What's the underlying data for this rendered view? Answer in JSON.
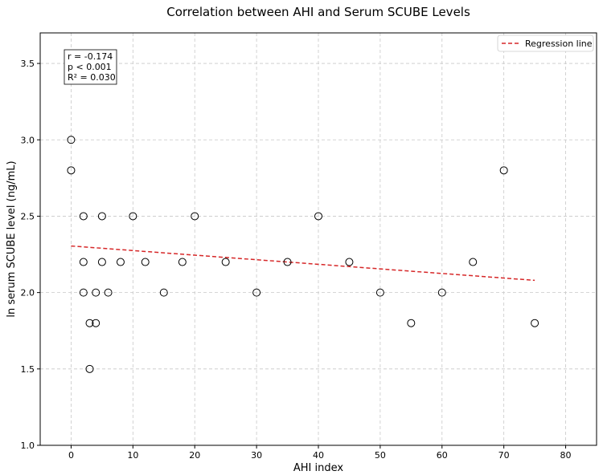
{
  "chart_data": {
    "type": "scatter",
    "title": "Correlation between AHI and Serum SCUBE Levels",
    "xlabel": "AHI index",
    "ylabel": "ln serum SCUBE level (ng/mL)",
    "xlim": [
      -5,
      85
    ],
    "ylim": [
      1.0,
      3.7
    ],
    "xticks": [
      0,
      10,
      20,
      30,
      40,
      50,
      60,
      70,
      80
    ],
    "yticks": [
      1.0,
      1.5,
      2.0,
      2.5,
      3.0,
      3.5
    ],
    "x_tick_labels": [
      "0",
      "10",
      "20",
      "30",
      "40",
      "50",
      "60",
      "70",
      "80"
    ],
    "y_tick_labels": [
      "1.0",
      "1.5",
      "2.0",
      "2.5",
      "3.0",
      "3.5"
    ],
    "grid": true,
    "points": [
      {
        "x": 0,
        "y": 3.0
      },
      {
        "x": 0,
        "y": 2.8
      },
      {
        "x": 2,
        "y": 2.5
      },
      {
        "x": 2,
        "y": 2.2
      },
      {
        "x": 2,
        "y": 2.0
      },
      {
        "x": 3,
        "y": 1.8
      },
      {
        "x": 3,
        "y": 1.5
      },
      {
        "x": 4,
        "y": 2.0
      },
      {
        "x": 4,
        "y": 1.8
      },
      {
        "x": 5,
        "y": 2.5
      },
      {
        "x": 5,
        "y": 2.2
      },
      {
        "x": 6,
        "y": 2.0
      },
      {
        "x": 8,
        "y": 2.2
      },
      {
        "x": 10,
        "y": 2.5
      },
      {
        "x": 12,
        "y": 2.2
      },
      {
        "x": 15,
        "y": 2.0
      },
      {
        "x": 18,
        "y": 2.2
      },
      {
        "x": 20,
        "y": 2.5
      },
      {
        "x": 25,
        "y": 2.2
      },
      {
        "x": 30,
        "y": 2.0
      },
      {
        "x": 35,
        "y": 2.2
      },
      {
        "x": 40,
        "y": 2.5
      },
      {
        "x": 45,
        "y": 2.2
      },
      {
        "x": 50,
        "y": 2.0
      },
      {
        "x": 55,
        "y": 1.8
      },
      {
        "x": 60,
        "y": 2.0
      },
      {
        "x": 65,
        "y": 2.2
      },
      {
        "x": 70,
        "y": 2.8
      },
      {
        "x": 75,
        "y": 1.8
      }
    ],
    "regression": {
      "name": "Regression line",
      "x": [
        0,
        75
      ],
      "y": [
        2.305,
        2.08
      ],
      "color": "#d62728",
      "style": "dashed"
    },
    "legend": {
      "entries": [
        "Regression line"
      ],
      "placement": "top-right"
    },
    "annotation": {
      "lines": [
        "r = -0.174",
        "p < 0.001",
        "R² = 0.030"
      ],
      "placement": "top-left"
    },
    "marker_color": "#000000",
    "grid_color": "#c8c8c8"
  }
}
